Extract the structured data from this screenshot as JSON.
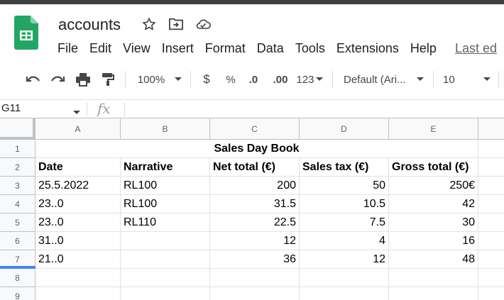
{
  "app": {
    "title": "accounts",
    "icons": [
      "star-icon",
      "move-to-folder-icon",
      "cloud-status-icon"
    ]
  },
  "menu": {
    "items": [
      "File",
      "Edit",
      "View",
      "Insert",
      "Format",
      "Data",
      "Tools",
      "Extensions",
      "Help"
    ],
    "last_edit": "Last ed"
  },
  "toolbar": {
    "zoom": "100%",
    "currency": "$",
    "percent": "%",
    "dec_decrease": ".0",
    "dec_increase": ".00",
    "number_format": "123",
    "font": "Default (Ari...",
    "font_size": "10"
  },
  "formula_bar": {
    "name_box": "G11",
    "fx": "fx",
    "value": ""
  },
  "sheet": {
    "columns": [
      "A",
      "B",
      "C",
      "D",
      "E"
    ],
    "rows": [
      "1",
      "2",
      "3",
      "4",
      "5",
      "6",
      "7",
      "8",
      "9"
    ],
    "selected_row": "7",
    "title": "Sales Day Book",
    "headers": [
      "Date",
      "Narrative",
      "Net total (€)",
      "Sales tax (€)",
      "Gross total (€)"
    ],
    "data": [
      [
        "25.5.2022",
        "RL100",
        "200",
        "50",
        "250€"
      ],
      [
        "23..0",
        "RL100",
        "31.5",
        "10.5",
        "42"
      ],
      [
        "23..0",
        "RL110",
        "22.5",
        "7.5",
        "30"
      ],
      [
        "31..0",
        "",
        "12",
        "4",
        "16"
      ],
      [
        "21..0",
        "",
        "36",
        "12",
        "48"
      ]
    ]
  }
}
